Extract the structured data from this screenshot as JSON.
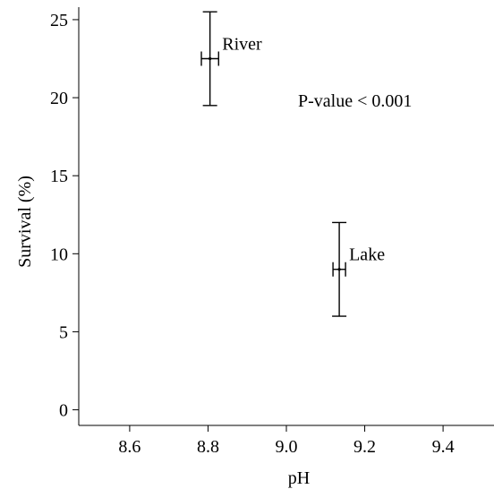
{
  "chart_data": {
    "type": "scatter",
    "title": "",
    "xlabel": "pH",
    "ylabel": "Survival (%)",
    "xlim": [
      8.47,
      9.53
    ],
    "ylim": [
      -1.0,
      25.8
    ],
    "xticks": [
      8.6,
      8.8,
      9.0,
      9.2,
      9.4
    ],
    "xtick_labels": [
      "8.6",
      "8.8",
      "9.0",
      "9.2",
      "9.4"
    ],
    "yticks": [
      0,
      5,
      10,
      15,
      20,
      25
    ],
    "ytick_labels": [
      "0",
      "5",
      "10",
      "15",
      "20",
      "25"
    ],
    "grid": false,
    "points": [
      {
        "label": "River",
        "x": 8.805,
        "y": 22.5,
        "x_err": 0.022,
        "y_err": 3.0
      },
      {
        "label": "Lake",
        "x": 9.135,
        "y": 9.0,
        "x_err": 0.016,
        "y_err": 3.0
      }
    ],
    "annotation": "P-value < 0.001"
  }
}
